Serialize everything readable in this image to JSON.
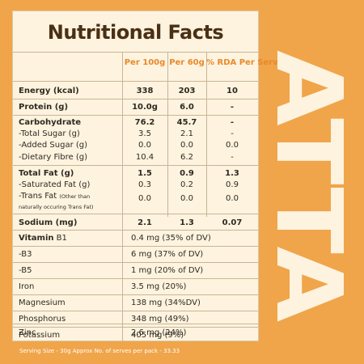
{
  "title": "Nutritional Facts",
  "headers": {
    "per100": "Per 100g",
    "per60": "Per 60g",
    "rda": "% RDA Per Serve"
  },
  "rows": [
    {
      "label": "Energy (kcal)",
      "v1": "338",
      "v2": "203",
      "v3": "10",
      "bold": true
    },
    {
      "label": "Protein (g)",
      "v1": "10.0g",
      "v2": "6.0",
      "v3": "-",
      "bold": true
    },
    {
      "label": "Carbohydrate",
      "v1": "76.2",
      "v2": "45.7",
      "v3": "-",
      "bold": true
    },
    {
      "label": "-Total Sugar (g)",
      "v1": "3.5",
      "v2": "2.1",
      "v3": "-"
    },
    {
      "label": "-Added Sugar (g)",
      "v1": "0.0",
      "v2": "0.0",
      "v3": "0.0"
    },
    {
      "label": "-Dietary Fibre (g)",
      "v1": "10.4",
      "v2": "6.2",
      "v3": "-"
    },
    {
      "label": "Total Fat (g)",
      "v1": "1.5",
      "v2": "0.9",
      "v3": "1.3",
      "bold": true
    },
    {
      "label": "-Saturated Fat (g)",
      "v1": "0.3",
      "v2": "0.2",
      "v3": "0.9"
    },
    {
      "label": "-Trans Fat",
      "label_note": "(Other than",
      "label_note2": "naturally occuring Trans Fat)",
      "v1": "0.0",
      "v2": "0.0",
      "v3": "0.0"
    },
    {
      "label": "Sodium (mg)",
      "v1": "2.1",
      "v2": "1.3",
      "v3": "0.07",
      "bold": true
    }
  ],
  "vitamins": [
    {
      "label_bold": "Vitamin",
      "label": " B1",
      "value": "0.4 mg (35% of DV)"
    },
    {
      "label": "-B3",
      "value": "6 mg (37% of DV)"
    },
    {
      "label": "-B5",
      "value": "1 mg (20% of DV)"
    },
    {
      "label": "Iron",
      "value": "3.5 mg (20%)"
    },
    {
      "label": "Magnesium",
      "value": "138 mg (34%DV)"
    },
    {
      "label": "Phosphorus",
      "value": "348 mg (49%)"
    },
    {
      "label": "Potassium",
      "value": "405 mg (9%)"
    },
    {
      "label": "Zinc",
      "value": "2.6 mg (24%)"
    }
  ],
  "footnote": "Serving Size - 30g Approx No. of serves per pack - 33.33",
  "brand_word": "ATTA",
  "colors": {
    "background": "#f0a54a",
    "card": "#fdf3df",
    "title": "#4a3014",
    "header_accent": "#e8892a",
    "brand_word": "#fdf3df"
  }
}
